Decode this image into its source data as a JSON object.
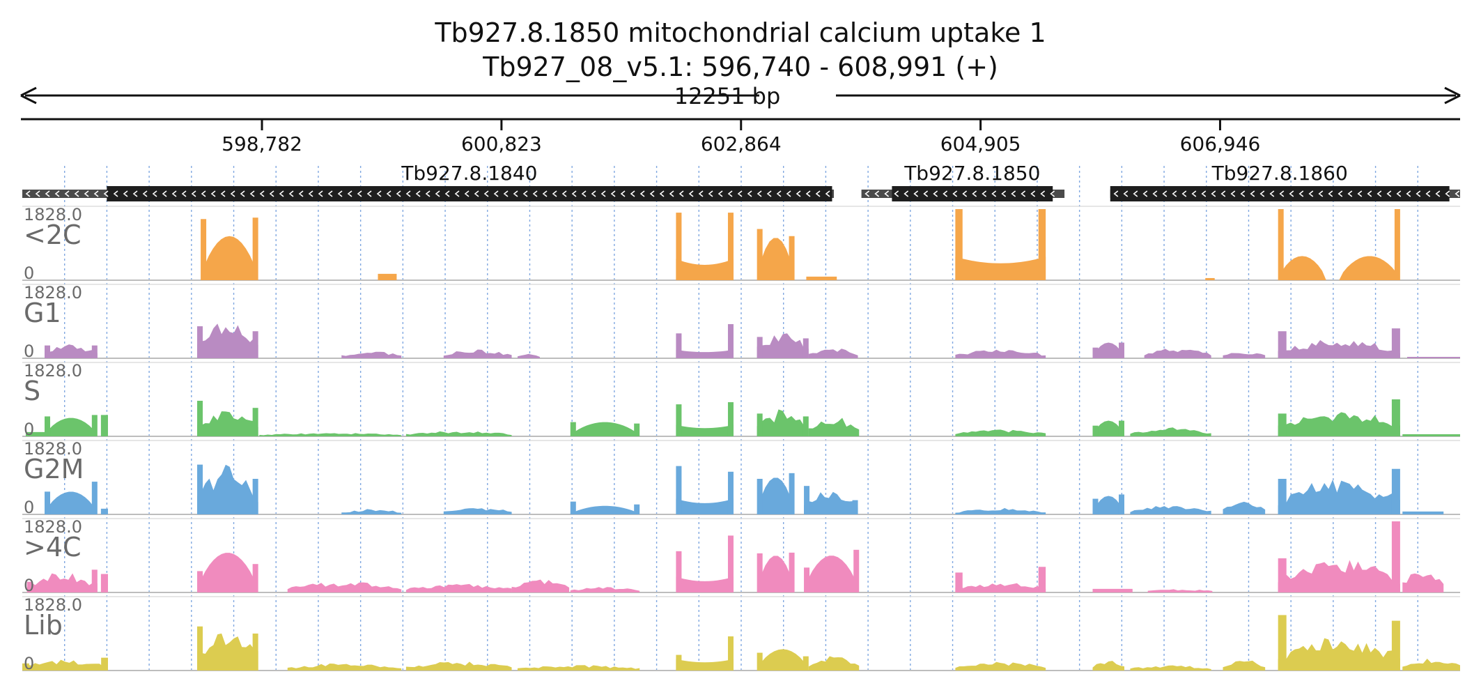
{
  "header": {
    "title": "Tb927.8.1850  mitochondrial calcium uptake 1",
    "subtitle": "Tb927_08_v5.1: 596,740 - 608,991 (+)",
    "span_label": "12251 bp"
  },
  "chart_data": {
    "type": "area",
    "title": "Tb927.8.1850  mitochondrial calcium uptake 1",
    "subtitle": "Tb927_08_v5.1: 596,740 - 608,991 (+)",
    "xlim": [
      596740,
      608991
    ],
    "x_ticks": [
      598782,
      600823,
      602864,
      604905,
      606946
    ],
    "x_tick_labels": [
      "598,782",
      "600,823",
      "602,864",
      "604,905",
      "606,946"
    ],
    "genes": [
      {
        "name": "Tb927.8.1840",
        "strand": "-",
        "utr": [
          596740,
          603655
        ],
        "cds": [
          597460,
          603640
        ]
      },
      {
        "name": "Tb927.8.1850",
        "strand": "-",
        "utr": [
          603890,
          605620
        ],
        "cds": [
          604150,
          605520
        ]
      },
      {
        "name": "Tb927.8.1860",
        "strand": "-",
        "utr": [
          606010,
          608991
        ],
        "cds": [
          606010,
          608900
        ]
      }
    ],
    "tracks": [
      {
        "name": "<2C",
        "max_label": "1828.0",
        "min_label": "0",
        "color": "#F5A64A",
        "segments": [
          {
            "start": 598260,
            "end": 598750,
            "shape": "peak",
            "level": 0.62,
            "edges": [
              0.86,
              0.88
            ]
          },
          {
            "start": 599770,
            "end": 599930,
            "shape": "flat",
            "level": 0.09
          },
          {
            "start": 602310,
            "end": 602800,
            "shape": "valley",
            "level": 0.3,
            "edges": [
              0.95,
              0.95
            ]
          },
          {
            "start": 603000,
            "end": 603320,
            "shape": "peak",
            "level": 0.6,
            "edges": [
              0.72,
              0.62
            ]
          },
          {
            "start": 603420,
            "end": 603680,
            "shape": "flat",
            "level": 0.05
          },
          {
            "start": 604690,
            "end": 605460,
            "shape": "valley",
            "level": 0.33,
            "edges": [
              1.0,
              1.0
            ]
          },
          {
            "start": 606820,
            "end": 606900,
            "shape": "flat",
            "level": 0.03
          },
          {
            "start": 607440,
            "end": 607850,
            "shape": "peak",
            "level": 0.34,
            "edges": [
              1.0,
              0.0
            ]
          },
          {
            "start": 607960,
            "end": 608480,
            "shape": "peak",
            "level": 0.34,
            "edges": [
              0.0,
              1.0
            ]
          }
        ]
      },
      {
        "name": "G1",
        "max_label": "1828.0",
        "min_label": "0",
        "color": "#B98BC2",
        "segments": [
          {
            "start": 596930,
            "end": 597380,
            "shape": "noisy",
            "level": 0.16,
            "edges": [
              0.18,
              0.18
            ]
          },
          {
            "start": 598230,
            "end": 598750,
            "shape": "noisy",
            "level": 0.42,
            "edges": [
              0.45,
              0.38
            ]
          },
          {
            "start": 599460,
            "end": 599970,
            "shape": "noisy",
            "level": 0.08
          },
          {
            "start": 600330,
            "end": 600910,
            "shape": "noisy",
            "level": 0.1
          },
          {
            "start": 600960,
            "end": 601150,
            "shape": "noisy",
            "level": 0.05
          },
          {
            "start": 602310,
            "end": 602800,
            "shape": "valley",
            "level": 0.12,
            "edges": [
              0.35,
              0.48
            ]
          },
          {
            "start": 603000,
            "end": 603440,
            "shape": "noisy",
            "level": 0.28,
            "edges": [
              0.3,
              0.28
            ]
          },
          {
            "start": 603440,
            "end": 603860,
            "shape": "noisy",
            "level": 0.12
          },
          {
            "start": 604690,
            "end": 605460,
            "shape": "noisy",
            "level": 0.1
          },
          {
            "start": 605860,
            "end": 606130,
            "shape": "peak",
            "level": 0.22,
            "edges": [
              0.15,
              0.22
            ]
          },
          {
            "start": 606300,
            "end": 606870,
            "shape": "noisy",
            "level": 0.12
          },
          {
            "start": 606970,
            "end": 607330,
            "shape": "noisy",
            "level": 0.08
          },
          {
            "start": 607440,
            "end": 608480,
            "shape": "noisy",
            "level": 0.22,
            "edges": [
              0.38,
              0.42
            ]
          },
          {
            "start": 608540,
            "end": 608991,
            "shape": "flat",
            "level": 0.02
          }
        ]
      },
      {
        "name": "S",
        "max_label": "1828.0",
        "min_label": "0",
        "color": "#6BC46B",
        "segments": [
          {
            "start": 596770,
            "end": 596960,
            "shape": "flat",
            "level": 0.06
          },
          {
            "start": 596930,
            "end": 597380,
            "shape": "peak",
            "level": 0.26,
            "edges": [
              0.28,
              0.3
            ]
          },
          {
            "start": 597410,
            "end": 597470,
            "shape": "flat",
            "level": 0.3
          },
          {
            "start": 598230,
            "end": 598750,
            "shape": "noisy",
            "level": 0.3,
            "edges": [
              0.5,
              0.4
            ]
          },
          {
            "start": 598760,
            "end": 599970,
            "shape": "noisy",
            "level": 0.04
          },
          {
            "start": 600010,
            "end": 600910,
            "shape": "noisy",
            "level": 0.06
          },
          {
            "start": 601410,
            "end": 602000,
            "shape": "peak",
            "level": 0.2,
            "edges": [
              0.2,
              0.18
            ]
          },
          {
            "start": 602310,
            "end": 602800,
            "shape": "valley",
            "level": 0.16,
            "edges": [
              0.45,
              0.48
            ]
          },
          {
            "start": 603000,
            "end": 603440,
            "shape": "noisy",
            "level": 0.3,
            "edges": [
              0.32,
              0.28
            ]
          },
          {
            "start": 603440,
            "end": 603870,
            "shape": "noisy",
            "level": 0.22
          },
          {
            "start": 604690,
            "end": 605460,
            "shape": "noisy",
            "level": 0.08
          },
          {
            "start": 605860,
            "end": 606130,
            "shape": "peak",
            "level": 0.22,
            "edges": [
              0.15,
              0.22
            ]
          },
          {
            "start": 606180,
            "end": 606870,
            "shape": "noisy",
            "level": 0.1
          },
          {
            "start": 607440,
            "end": 608480,
            "shape": "noisy",
            "level": 0.3,
            "edges": [
              0.32,
              0.52
            ]
          },
          {
            "start": 608500,
            "end": 608991,
            "shape": "flat",
            "level": 0.03
          }
        ]
      },
      {
        "name": "G2M",
        "max_label": "1828.0",
        "min_label": "0",
        "color": "#69A9DC",
        "segments": [
          {
            "start": 596930,
            "end": 597380,
            "shape": "peak",
            "level": 0.32,
            "edges": [
              0.32,
              0.46
            ]
          },
          {
            "start": 597410,
            "end": 597470,
            "shape": "flat",
            "level": 0.08
          },
          {
            "start": 598230,
            "end": 598750,
            "shape": "noisy",
            "level": 0.55,
            "edges": [
              0.7,
              0.5
            ]
          },
          {
            "start": 599460,
            "end": 599970,
            "shape": "noisy",
            "level": 0.06
          },
          {
            "start": 600330,
            "end": 600910,
            "shape": "noisy",
            "level": 0.08
          },
          {
            "start": 601410,
            "end": 602000,
            "shape": "peak",
            "level": 0.12,
            "edges": [
              0.18,
              0.14
            ]
          },
          {
            "start": 602310,
            "end": 602800,
            "shape": "valley",
            "level": 0.22,
            "edges": [
              0.68,
              0.6
            ]
          },
          {
            "start": 603000,
            "end": 603320,
            "shape": "peak",
            "level": 0.52,
            "edges": [
              0.5,
              0.58
            ]
          },
          {
            "start": 603400,
            "end": 603860,
            "shape": "noisy",
            "level": 0.28,
            "edges": [
              0.4,
              0.2
            ]
          },
          {
            "start": 604690,
            "end": 605460,
            "shape": "noisy",
            "level": 0.07
          },
          {
            "start": 605860,
            "end": 606130,
            "shape": "peak",
            "level": 0.26,
            "edges": [
              0.22,
              0.28
            ]
          },
          {
            "start": 606180,
            "end": 606870,
            "shape": "noisy",
            "level": 0.1
          },
          {
            "start": 606970,
            "end": 607330,
            "shape": "noisy",
            "level": 0.15
          },
          {
            "start": 607440,
            "end": 608480,
            "shape": "noisy",
            "level": 0.4,
            "edges": [
              0.5,
              0.64
            ]
          },
          {
            "start": 608500,
            "end": 608850,
            "shape": "flat",
            "level": 0.04
          }
        ]
      },
      {
        "name": ">4C",
        "max_label": "1828.0",
        "min_label": "0",
        "color": "#F08BBE",
        "segments": [
          {
            "start": 596780,
            "end": 597380,
            "shape": "noisy",
            "level": 0.22,
            "edges": [
              0.15,
              0.32
            ]
          },
          {
            "start": 597410,
            "end": 597470,
            "shape": "flat",
            "level": 0.26
          },
          {
            "start": 598230,
            "end": 598750,
            "shape": "peak",
            "level": 0.56,
            "edges": [
              0.3,
              0.4
            ]
          },
          {
            "start": 599000,
            "end": 599970,
            "shape": "noisy",
            "level": 0.12
          },
          {
            "start": 600010,
            "end": 600910,
            "shape": "noisy",
            "level": 0.1
          },
          {
            "start": 600910,
            "end": 601400,
            "shape": "noisy",
            "level": 0.16
          },
          {
            "start": 601410,
            "end": 602000,
            "shape": "noisy",
            "level": 0.06
          },
          {
            "start": 602310,
            "end": 602800,
            "shape": "valley",
            "level": 0.22,
            "edges": [
              0.58,
              0.8
            ]
          },
          {
            "start": 603000,
            "end": 603320,
            "shape": "peak",
            "level": 0.52,
            "edges": [
              0.55,
              0.56
            ]
          },
          {
            "start": 603400,
            "end": 603870,
            "shape": "peak",
            "level": 0.52,
            "edges": [
              0.35,
              0.6
            ]
          },
          {
            "start": 604690,
            "end": 605460,
            "shape": "noisy",
            "level": 0.12,
            "edges": [
              0.28,
              0.36
            ]
          },
          {
            "start": 605860,
            "end": 606200,
            "shape": "flat",
            "level": 0.05
          },
          {
            "start": 606330,
            "end": 606880,
            "shape": "noisy",
            "level": 0.04
          },
          {
            "start": 607440,
            "end": 608480,
            "shape": "noisy",
            "level": 0.38,
            "edges": [
              0.48,
              1.0
            ]
          },
          {
            "start": 608500,
            "end": 608850,
            "shape": "noisy",
            "level": 0.28
          }
        ]
      },
      {
        "name": "Lib",
        "max_label": "1828.0",
        "min_label": "0",
        "color": "#DCCC50",
        "segments": [
          {
            "start": 596740,
            "end": 597470,
            "shape": "noisy",
            "level": 0.12,
            "edges": [
              0.1,
              0.18
            ]
          },
          {
            "start": 598230,
            "end": 598750,
            "shape": "noisy",
            "level": 0.48,
            "edges": [
              0.62,
              0.52
            ]
          },
          {
            "start": 599000,
            "end": 599970,
            "shape": "noisy",
            "level": 0.08
          },
          {
            "start": 600010,
            "end": 600910,
            "shape": "noisy",
            "level": 0.1
          },
          {
            "start": 600960,
            "end": 602000,
            "shape": "noisy",
            "level": 0.06
          },
          {
            "start": 602310,
            "end": 602800,
            "shape": "valley",
            "level": 0.16,
            "edges": [
              0.22,
              0.48
            ]
          },
          {
            "start": 603000,
            "end": 603440,
            "shape": "peak",
            "level": 0.3,
            "edges": [
              0.25,
              0.2
            ]
          },
          {
            "start": 603440,
            "end": 603870,
            "shape": "noisy",
            "level": 0.16
          },
          {
            "start": 604690,
            "end": 605460,
            "shape": "noisy",
            "level": 0.1
          },
          {
            "start": 605860,
            "end": 606130,
            "shape": "noisy",
            "level": 0.12
          },
          {
            "start": 606180,
            "end": 606870,
            "shape": "noisy",
            "level": 0.06
          },
          {
            "start": 606970,
            "end": 607330,
            "shape": "noisy",
            "level": 0.12
          },
          {
            "start": 607440,
            "end": 608480,
            "shape": "noisy",
            "level": 0.38,
            "edges": [
              0.78,
              0.7
            ]
          },
          {
            "start": 608500,
            "end": 608991,
            "shape": "noisy",
            "level": 0.14
          }
        ]
      }
    ]
  }
}
